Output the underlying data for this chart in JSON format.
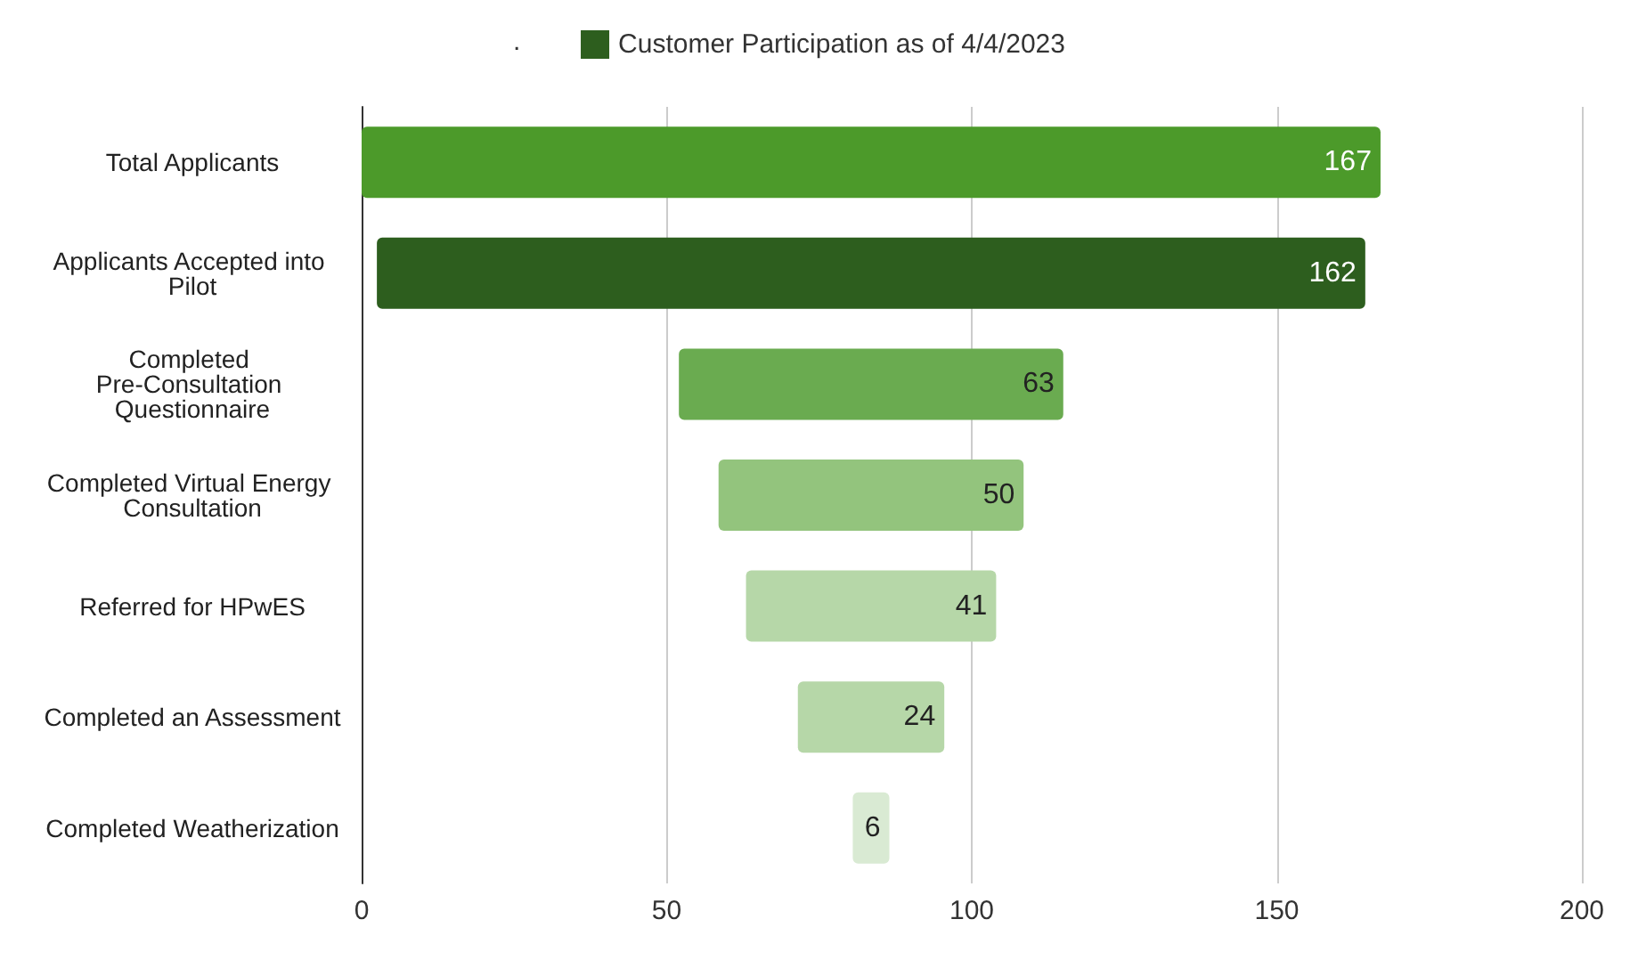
{
  "chart_data": {
    "type": "bar",
    "orientation": "horizontal",
    "categories": [
      "Total Applicants",
      "Applicants Accepted into Pilot",
      "Completed Pre-Consultation Questionnaire",
      "Completed Virtual Energy Consultation",
      "Referred for HPwES",
      "Completed an Assessment",
      "Completed Weatherization"
    ],
    "series": [
      {
        "name": "Customer Participation as of 4/4/2023",
        "color": "#2d5e1e",
        "colors": [
          "#4c9a2a",
          "#2d5e1e",
          "#6aab50",
          "#93c47d",
          "#b6d7a8",
          "#b6d7a8",
          "#d9ead3"
        ],
        "values": [
          167,
          162,
          63,
          50,
          41,
          24,
          6
        ],
        "base": [
          0,
          2.5,
          52,
          58.5,
          63,
          71.5,
          80.5
        ]
      }
    ],
    "legend_title": ".",
    "data_labels": true,
    "xlim": [
      0,
      200
    ],
    "xticks": [
      0,
      50,
      100,
      150,
      200
    ],
    "grid": "x",
    "legend": "top"
  }
}
